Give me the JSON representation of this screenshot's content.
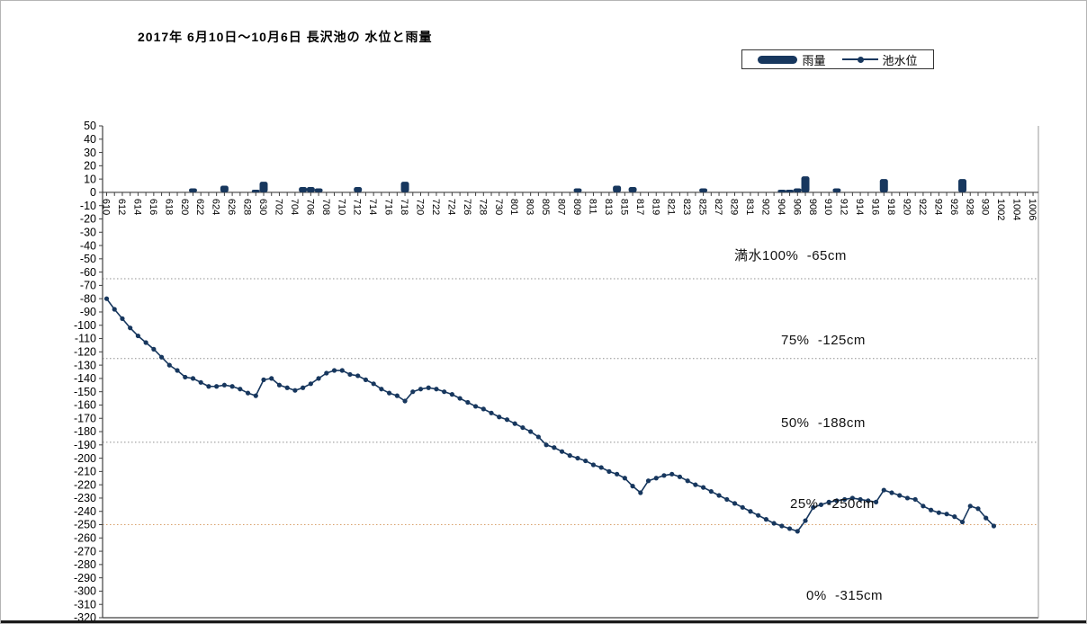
{
  "title": "2017年 6月10日～10月6日 長沢池の 水位と雨量",
  "legend": {
    "rain_label": "雨量",
    "level_label": "池水位"
  },
  "reference_lines": [
    {
      "label": "満水100%  -65cm",
      "value": -65,
      "line": true,
      "color": "#909090"
    },
    {
      "label": "75%  -125cm",
      "value": -125,
      "line": true,
      "color": "#909090"
    },
    {
      "label": "50%  -188cm",
      "value": -188,
      "line": true,
      "color": "#909090"
    },
    {
      "label": "25%  -250cm",
      "value": -250,
      "line": true,
      "color": "#D9A06B"
    },
    {
      "label": "0%  -315cm",
      "value": -315,
      "line": false,
      "color": ""
    }
  ],
  "colors": {
    "series_navy": "#17375E",
    "axis": "#404040",
    "grid_dotted_gray": "#909090",
    "grid_dotted_tan": "#D9A06B",
    "text": "#000000"
  },
  "chart_data": {
    "type": "bar+line",
    "title": "2017年 6月10日～10月6日 長沢池の 水位と雨量",
    "ylabel": "cm / mm",
    "y_axis": {
      "min": -320,
      "max": 50,
      "step": 10
    },
    "x_total_days": 119,
    "x_tick_labels": [
      "610",
      "612",
      "614",
      "616",
      "618",
      "620",
      "622",
      "624",
      "626",
      "628",
      "630",
      "702",
      "704",
      "706",
      "708",
      "710",
      "712",
      "714",
      "716",
      "718",
      "720",
      "722",
      "724",
      "726",
      "728",
      "730",
      "801",
      "803",
      "805",
      "807",
      "809",
      "811",
      "813",
      "815",
      "817",
      "819",
      "821",
      "823",
      "825",
      "827",
      "829",
      "831",
      "902",
      "904",
      "906",
      "908",
      "910",
      "912",
      "914",
      "916",
      "918",
      "920",
      "922",
      "924",
      "926",
      "928",
      "930",
      "1002",
      "1004",
      "1006"
    ],
    "legend_position": "top-right",
    "series": [
      {
        "name": "雨量",
        "type": "bar",
        "unit": "mm",
        "points_format": "[day_index, mm]",
        "points": [
          [
            11,
            3
          ],
          [
            15,
            5
          ],
          [
            19,
            2
          ],
          [
            20,
            8
          ],
          [
            25,
            4
          ],
          [
            26,
            4
          ],
          [
            27,
            3
          ],
          [
            32,
            4
          ],
          [
            38,
            8
          ],
          [
            60,
            3
          ],
          [
            65,
            5
          ],
          [
            67,
            4
          ],
          [
            76,
            3
          ],
          [
            86,
            2
          ],
          [
            87,
            2
          ],
          [
            88,
            3
          ],
          [
            89,
            12
          ],
          [
            93,
            3
          ],
          [
            99,
            10
          ],
          [
            109,
            10
          ]
        ]
      },
      {
        "name": "池水位",
        "type": "line",
        "unit": "cm",
        "start_day": 0,
        "values": [
          -80,
          -88,
          -95,
          -102,
          -108,
          -113,
          -118,
          -124,
          -130,
          -134,
          -139,
          -140,
          -143,
          -146,
          -146,
          -145,
          -146,
          -148,
          -151,
          -153,
          -141,
          -140,
          -145,
          -147,
          -149,
          -147,
          -144,
          -140,
          -136,
          -134,
          -134,
          -137,
          -138,
          -141,
          -144,
          -148,
          -151,
          -153,
          -157,
          -150,
          -148,
          -147,
          -148,
          -150,
          -152,
          -155,
          -158,
          -161,
          -163,
          -166,
          -169,
          -171,
          -174,
          -177,
          -180,
          -184,
          -190,
          -192,
          -195,
          -198,
          -200,
          -202,
          -205,
          -207,
          -210,
          -212,
          -215,
          -221,
          -226,
          -217,
          -215,
          -213,
          -212,
          -214,
          -217,
          -220,
          -222,
          -225,
          -228,
          -231,
          -234,
          -237,
          -240,
          -243,
          -246,
          -249,
          -251,
          -253,
          -255,
          -247,
          -237,
          -235,
          -233,
          -232,
          -231,
          -230,
          -231,
          -232,
          -233,
          -224,
          -226,
          -228,
          -230,
          -231,
          -236,
          -239,
          -241,
          -242,
          -244,
          -248,
          -236,
          -238,
          -245,
          -251
        ]
      }
    ]
  }
}
